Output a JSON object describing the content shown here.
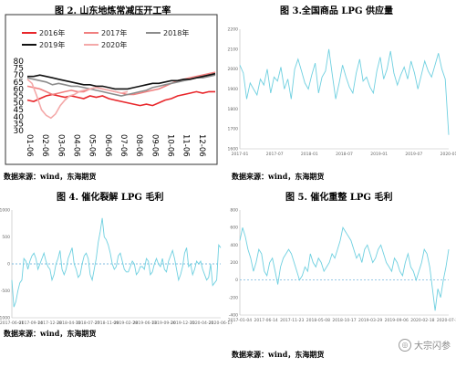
{
  "charts": [
    {
      "title": "图 2. 山东地炼常减压开工率",
      "source": "数据来源：wind，东海期货",
      "chart_data": {
        "type": "line",
        "title": "图 2. 山东地炼常减压开工率",
        "ylim": [
          30,
          80
        ],
        "yticks": [
          30,
          35,
          40,
          45,
          50,
          55,
          60,
          65,
          70,
          75,
          80
        ],
        "xticks": [
          "01-06",
          "02-06",
          "03-06",
          "04-06",
          "05-06",
          "06-06",
          "07-06",
          "08-06",
          "09-06",
          "10-06",
          "11-06",
          "12-06"
        ],
        "xlim": [
          0,
          12
        ],
        "legend": "top",
        "series": [
          {
            "name": "2016年",
            "color": "#e8262a",
            "x": [
              0,
              0.4,
              0.8,
              1.2,
              1.6,
              2,
              2.4,
              2.8,
              3.2,
              3.6,
              4,
              4.4,
              4.8,
              5.2,
              5.6,
              6,
              6.4,
              6.8,
              7.2,
              7.6,
              8,
              8.4,
              8.8,
              9.2,
              9.6,
              10,
              10.4,
              10.8,
              11.2,
              11.6,
              12
            ],
            "values": [
              52,
              51,
              53,
              55,
              56,
              55,
              54,
              55,
              54,
              53,
              55,
              54,
              55,
              53,
              52,
              51,
              50,
              49,
              48,
              49,
              48,
              50,
              52,
              53,
              55,
              56,
              57,
              58,
              57,
              58,
              58
            ]
          },
          {
            "name": "2017年",
            "color": "#f07f7f",
            "x": [
              0,
              0.4,
              0.8,
              1.2,
              1.6,
              2,
              2.4,
              2.8,
              3.2,
              3.6,
              4,
              4.4,
              4.8,
              5.2,
              5.6,
              6,
              6.4,
              6.8,
              7.2,
              7.6,
              8,
              8.4,
              8.8,
              9.2,
              9.6,
              10,
              10.4,
              10.8,
              11.2,
              11.6,
              12
            ],
            "values": [
              62,
              61,
              60,
              58,
              56,
              57,
              58,
              59,
              58,
              58,
              60,
              61,
              60,
              59,
              58,
              57,
              56,
              56,
              57,
              58,
              59,
              60,
              62,
              64,
              66,
              67,
              68,
              69,
              70,
              71,
              72
            ]
          },
          {
            "name": "2018年",
            "color": "#8c8c8c",
            "x": [
              0,
              0.4,
              0.8,
              1.2,
              1.6,
              2,
              2.4,
              2.8,
              3.2,
              3.6,
              4,
              4.4,
              4.8,
              5.2,
              5.6,
              6,
              6.4,
              6.8,
              7.2,
              7.6,
              8,
              8.4,
              8.8,
              9.2,
              9.6,
              10,
              10.4,
              10.8,
              11.2,
              11.6,
              12
            ],
            "values": [
              68,
              67,
              66,
              65,
              63,
              64,
              63,
              62,
              62,
              61,
              60,
              59,
              58,
              57,
              56,
              55,
              56,
              57,
              58,
              59,
              61,
              62,
              63,
              64,
              65,
              66,
              67,
              68,
              68,
              69,
              70
            ]
          },
          {
            "name": "2019年",
            "color": "#111111",
            "x": [
              0,
              0.4,
              0.8,
              1.2,
              1.6,
              2,
              2.4,
              2.8,
              3.2,
              3.6,
              4,
              4.4,
              4.8,
              5.2,
              5.6,
              6,
              6.4,
              6.8,
              7.2,
              7.6,
              8,
              8.4,
              8.8,
              9.2,
              9.6,
              10,
              10.4,
              10.8,
              11.2,
              11.6,
              12
            ],
            "values": [
              69,
              69,
              70,
              69,
              68,
              67,
              66,
              65,
              64,
              63,
              63,
              62,
              62,
              61,
              60,
              60,
              60,
              61,
              62,
              63,
              64,
              64,
              65,
              66,
              66,
              67,
              67,
              68,
              69,
              70,
              71
            ]
          },
          {
            "name": "2020年",
            "color": "#f4a9a9",
            "x": [
              0,
              0.3,
              0.6,
              0.9,
              1.2,
              1.5,
              1.8,
              2.1,
              2.4,
              2.7,
              3,
              3.3,
              3.6,
              4,
              4.4,
              4.8,
              5.2,
              5.6,
              6,
              6.4
            ],
            "values": [
              67,
              64,
              55,
              45,
              41,
              39,
              42,
              48,
              52,
              55,
              56,
              58,
              59,
              60,
              61,
              60,
              59,
              58,
              57,
              58
            ]
          }
        ]
      }
    },
    {
      "title": "图 3.全国商品 LPG 供应量",
      "source": "数据来源：wind，东海期货",
      "chart_data": {
        "type": "line",
        "title": "图 3.全国商品 LPG 供应量",
        "ylim": [
          1600,
          2200
        ],
        "yticks": [
          1600,
          1700,
          1800,
          1900,
          2000,
          2100,
          2200
        ],
        "xticks": [
          "2017-01",
          "2017-07",
          "2018-01",
          "2018-07",
          "2019-01",
          "2019-07",
          "2020-01"
        ],
        "series": [
          {
            "name": "",
            "color": "#6fd0e0",
            "values": [
              2020,
              1980,
              1850,
              1930,
              1900,
              1870,
              1950,
              1920,
              2000,
              1880,
              1960,
              1940,
              2010,
              1900,
              1950,
              1850,
              2000,
              2050,
              1990,
              1930,
              1900,
              1970,
              2030,
              1880,
              1960,
              1990,
              2100,
              1970,
              1850,
              1930,
              2020,
              1960,
              1910,
              1880,
              1980,
              2050,
              1940,
              1960,
              1910,
              1880,
              1990,
              2060,
              1950,
              2000,
              2090,
              1980,
              1920,
              1970,
              2010,
              1950,
              2040,
              1980,
              1900,
              1970,
              2040,
              1990,
              1960,
              2020,
              2080,
              2000,
              1950,
              1670
            ]
          }
        ]
      }
    },
    {
      "title": "图 4. 催化裂解 LPG 毛利",
      "source": "数据来源：wind，东海期货",
      "chart_data": {
        "type": "line",
        "title": "图 4. 催化裂解 LPG 毛利",
        "ylim": [
          -1000,
          1000
        ],
        "yticks": [
          -1000,
          -500,
          0,
          500,
          1000
        ],
        "xticks": [
          "2017-06-01",
          "2017-09-14",
          "2017-12-28",
          "2018-04-13",
          "2018-07-27",
          "2018-11-09",
          "2019-02-28",
          "2019-06-13",
          "2019-09-26",
          "2019-12-11",
          "2020-04-21",
          "2020-06-17"
        ],
        "series": [
          {
            "name": "",
            "color": "#6fd0e0",
            "values": [
              -300,
              -800,
              -700,
              -500,
              -350,
              -300,
              100,
              50,
              -100,
              50,
              150,
              200,
              100,
              -100,
              0,
              100,
              200,
              50,
              -50,
              -100,
              -300,
              -200,
              0,
              100,
              250,
              -100,
              -200,
              -100,
              100,
              200,
              300,
              0,
              -100,
              -250,
              -200,
              0,
              150,
              200,
              100,
              -200,
              -300,
              -100,
              100,
              400,
              600,
              850,
              500,
              450,
              350,
              200,
              0,
              -100,
              -50,
              150,
              200,
              50,
              -100,
              -150,
              -150,
              -50,
              50,
              0,
              -200,
              -150,
              -50,
              -50,
              -100,
              100,
              50,
              -200,
              -150,
              0,
              100,
              0,
              -50,
              100,
              -100,
              -150,
              50,
              150,
              250,
              100,
              -100,
              -300,
              -200,
              -50,
              200,
              300,
              -50,
              0,
              -200,
              -100,
              50,
              0,
              50,
              -100,
              -200,
              -300,
              -250,
              0,
              -400,
              -350,
              -300,
              350,
              300
            ]
          }
        ]
      }
    },
    {
      "title": "图 5. 催化重整 LPG 毛利",
      "source": "数据来源：wind，东海期货",
      "chart_data": {
        "type": "line",
        "title": "图 5. 催化重整 LPG 毛利",
        "ylim": [
          -400,
          800
        ],
        "yticks": [
          -400,
          -200,
          0,
          200,
          400,
          600,
          800
        ],
        "xticks": [
          "2017-01-04",
          "2017-06-14",
          "2017-11-23",
          "2018-05-08",
          "2018-10-17",
          "2019-03-29",
          "2019-09-06",
          "2020-02-18",
          "2020-07-28"
        ],
        "series": [
          {
            "name": "",
            "color": "#6fd0e0",
            "values": [
              450,
              600,
              500,
              350,
              250,
              100,
              200,
              350,
              300,
              100,
              50,
              200,
              250,
              100,
              -50,
              150,
              250,
              300,
              350,
              300,
              200,
              100,
              0,
              50,
              150,
              100,
              300,
              200,
              150,
              250,
              200,
              100,
              150,
              200,
              300,
              250,
              350,
              450,
              600,
              550,
              500,
              450,
              350,
              250,
              300,
              200,
              350,
              400,
              300,
              200,
              250,
              350,
              400,
              300,
              200,
              150,
              100,
              250,
              200,
              100,
              50,
              200,
              300,
              150,
              100,
              0,
              100,
              200,
              350,
              300,
              150,
              -100,
              -350,
              -100,
              -200,
              0,
              150,
              350
            ]
          }
        ]
      }
    }
  ],
  "watermark": {
    "text": "大宗闪参"
  }
}
